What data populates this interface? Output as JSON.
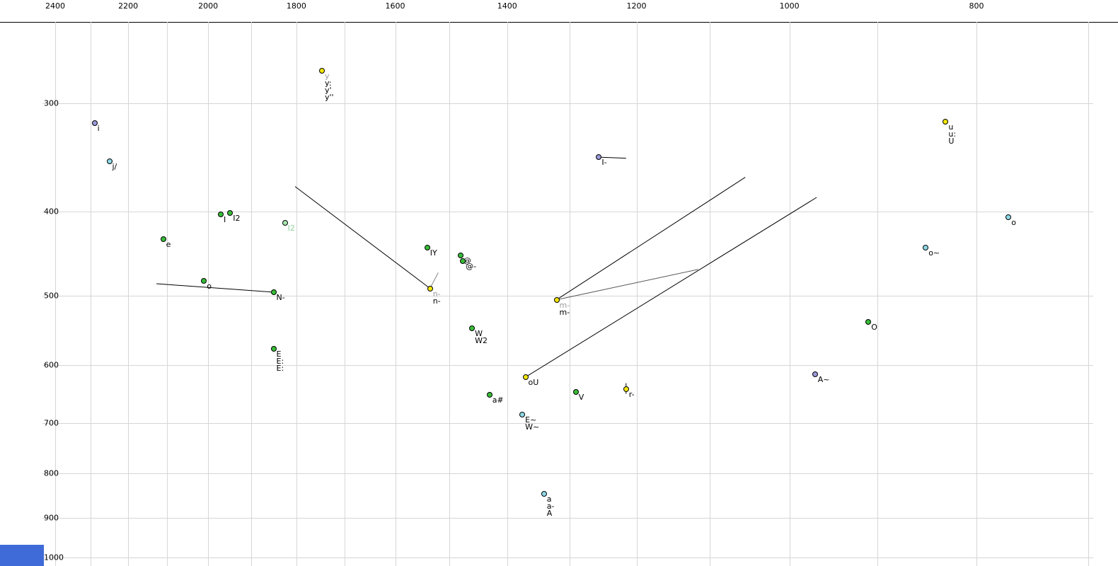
{
  "palette": {
    "dot_yellow": "#f2e50a",
    "dot_green": "#38bc38",
    "dot_cyan": "#8ed9e6",
    "dot_purple": "#9a99d9",
    "dot_pale": "#a5e6ae",
    "label_default": "#000000",
    "label_gray": "#9b9b9b",
    "label_pale": "#90cf9e",
    "grid": "#d6d6d6",
    "axis": "#000000",
    "corner": "#3f6bd8"
  },
  "chart_data": {
    "type": "scatter",
    "title": "",
    "xlabel": "",
    "ylabel": "",
    "x_axis": {
      "scale": "log",
      "reversed": true,
      "range": [
        2460,
        690
      ],
      "tick_labels": [
        2400,
        2200,
        2000,
        1800,
        1600,
        1400,
        1200,
        1000,
        800
      ],
      "gridlines": [
        2400,
        2300,
        2200,
        2100,
        2000,
        1900,
        1800,
        1700,
        1600,
        1500,
        1400,
        1300,
        1200,
        1100,
        1000,
        900,
        800,
        700
      ]
    },
    "y_axis": {
      "scale": "log",
      "range": [
        240,
        1010
      ],
      "tick_labels": [
        300,
        400,
        500,
        600,
        700,
        800,
        900,
        1000
      ],
      "gridlines": [
        300,
        400,
        500,
        600,
        700,
        800,
        900,
        1000
      ]
    },
    "points": [
      {
        "f2": 1746,
        "f1": 275,
        "color": "yellow",
        "labels": [
          {
            "t": "y",
            "c": "gray"
          },
          {
            "t": "y:"
          },
          {
            "t": "y'"
          },
          {
            "t": "y''"
          }
        ]
      },
      {
        "f2": 2290,
        "f1": 316,
        "color": "purple",
        "labels": [
          {
            "t": "i"
          }
        ]
      },
      {
        "f2": 2250,
        "f1": 350,
        "color": "cyan",
        "labels": [
          {
            "t": "j/"
          }
        ]
      },
      {
        "f2": 830,
        "f1": 315,
        "color": "yellow",
        "labels": [
          {
            "t": "u"
          },
          {
            "t": "u:"
          },
          {
            "t": "U"
          }
        ]
      },
      {
        "f2": 1255,
        "f1": 346,
        "color": "purple",
        "labels": [
          {
            "t": "I-"
          }
        ]
      },
      {
        "f2": 1970,
        "f1": 403,
        "color": "green",
        "labels": [
          {
            "t": "I"
          }
        ]
      },
      {
        "f2": 1948,
        "f1": 401,
        "color": "green",
        "labels": [
          {
            "t": "I2"
          }
        ]
      },
      {
        "f2": 1825,
        "f1": 412,
        "color": "pale",
        "labels": [
          {
            "t": "I2",
            "c": "pale"
          }
        ]
      },
      {
        "f2": 2110,
        "f1": 430,
        "color": "green",
        "labels": [
          {
            "t": "e"
          }
        ]
      },
      {
        "f2": 770,
        "f1": 406,
        "color": "cyan",
        "labels": [
          {
            "t": "o"
          }
        ]
      },
      {
        "f2": 850,
        "f1": 440,
        "color": "cyan",
        "labels": [
          {
            "t": "o~"
          }
        ]
      },
      {
        "f2": 1540,
        "f1": 440,
        "color": "green",
        "labels": [
          {
            "t": "IY"
          }
        ]
      },
      {
        "f2": 1480,
        "f1": 449,
        "color": "green",
        "labels": [
          {
            "t": "@"
          }
        ]
      },
      {
        "f2": 1476,
        "f1": 456,
        "color": "green",
        "labels": [
          {
            "t": "@-"
          }
        ]
      },
      {
        "f2": 2010,
        "f1": 480,
        "color": "green",
        "labels": [
          {
            "t": "o"
          }
        ]
      },
      {
        "f2": 1850,
        "f1": 495,
        "color": "green",
        "labels": [
          {
            "t": "N-"
          }
        ]
      },
      {
        "f2": 1535,
        "f1": 490,
        "color": "yellow",
        "labels": [
          {
            "t": "n-",
            "c": "gray"
          },
          {
            "t": "n-"
          }
        ]
      },
      {
        "f2": 1320,
        "f1": 505,
        "color": "yellow",
        "labels": [
          {
            "t": "m-",
            "c": "gray"
          },
          {
            "t": "m-"
          }
        ]
      },
      {
        "f2": 1460,
        "f1": 545,
        "color": "green",
        "labels": [
          {
            "t": "W"
          },
          {
            "t": "W2"
          }
        ]
      },
      {
        "f2": 1850,
        "f1": 575,
        "color": "green",
        "labels": [
          {
            "t": "E"
          },
          {
            "t": "E:"
          },
          {
            "t": "E:"
          }
        ]
      },
      {
        "f2": 1370,
        "f1": 620,
        "color": "yellow",
        "labels": [
          {
            "t": "oU"
          }
        ]
      },
      {
        "f2": 1430,
        "f1": 650,
        "color": "green",
        "labels": [
          {
            "t": "a#"
          }
        ]
      },
      {
        "f2": 1290,
        "f1": 645,
        "color": "green",
        "labels": [
          {
            "t": "V"
          }
        ]
      },
      {
        "f2": 1215,
        "f1": 640,
        "color": "yellow",
        "labels": [
          {
            "t": "r-"
          }
        ]
      },
      {
        "f2": 970,
        "f1": 615,
        "color": "purple",
        "labels": [
          {
            "t": "A~"
          }
        ]
      },
      {
        "f2": 910,
        "f1": 535,
        "color": "green",
        "labels": [
          {
            "t": "O"
          }
        ]
      },
      {
        "f2": 1375,
        "f1": 685,
        "color": "cyan",
        "labels": [
          {
            "t": "E~"
          },
          {
            "t": "W~"
          }
        ]
      },
      {
        "f2": 1340,
        "f1": 845,
        "color": "cyan",
        "labels": [
          {
            "t": "a"
          },
          {
            "t": "a-"
          },
          {
            "t": "A"
          }
        ]
      }
    ],
    "segments": [
      {
        "f2a": 2127,
        "f1a": 484,
        "f2b": 1850,
        "f1b": 495
      },
      {
        "f2a": 1803,
        "f1a": 374,
        "f2b": 1535,
        "f1b": 490
      },
      {
        "f2a": 1520,
        "f1a": 470,
        "f2b": 1535,
        "f1b": 490,
        "c": "#888888"
      },
      {
        "f2a": 1320,
        "f1a": 505,
        "f2b": 1054,
        "f1b": 365
      },
      {
        "f2a": 1320,
        "f1a": 505,
        "f2b": 1115,
        "f1b": 466,
        "c": "#555555"
      },
      {
        "f2a": 1370,
        "f1a": 620,
        "f2b": 968,
        "f1b": 385
      },
      {
        "f2a": 1255,
        "f1a": 346,
        "f2b": 1215,
        "f1b": 347
      },
      {
        "f2a": 1215,
        "f1a": 630,
        "f2b": 1215,
        "f1b": 648
      }
    ]
  }
}
